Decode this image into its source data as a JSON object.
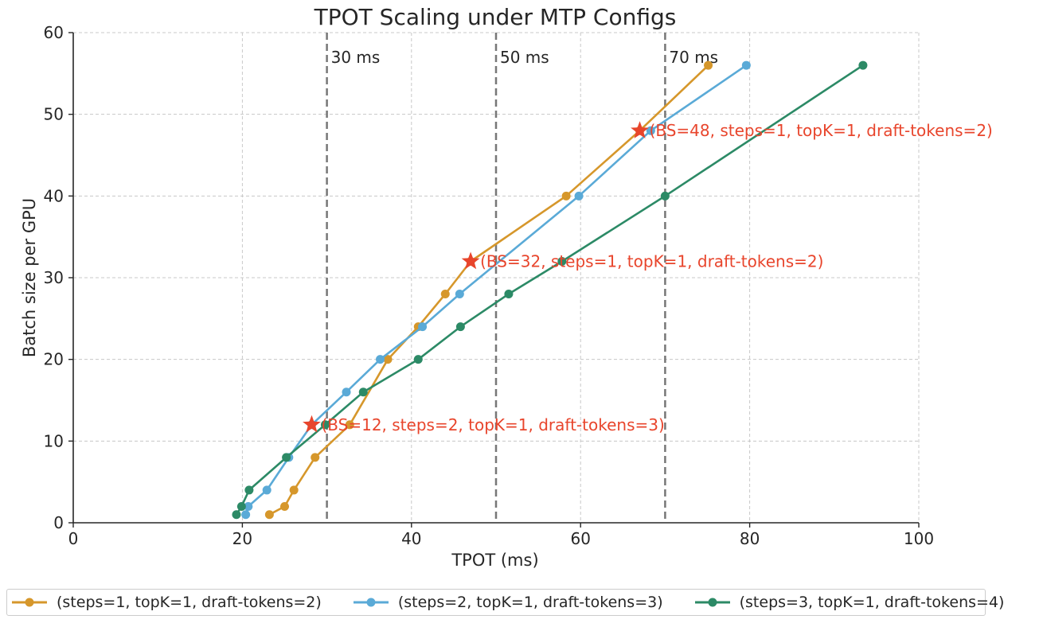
{
  "chart_data": {
    "type": "line",
    "title": "TPOT Scaling under MTP Configs",
    "xlabel": "TPOT (ms)",
    "ylabel": "Batch size per GPU",
    "xlim": [
      0,
      100
    ],
    "ylim": [
      0,
      60
    ],
    "xticks": [
      0,
      20,
      40,
      60,
      80,
      100
    ],
    "yticks": [
      0,
      10,
      20,
      30,
      40,
      50,
      60
    ],
    "grid": true,
    "legend_position": "bottom",
    "series": [
      {
        "name": "(steps=1, topK=1, draft-tokens=2)",
        "color": "#D6972B",
        "x": [
          23.2,
          25.0,
          26.1,
          28.6,
          32.7,
          37.2,
          40.8,
          44.0,
          47.0,
          58.3,
          67.0,
          75.1
        ],
        "y": [
          1,
          2,
          4,
          8,
          12,
          20,
          24,
          28,
          32,
          40,
          48,
          56
        ]
      },
      {
        "name": "(steps=2, topK=1, draft-tokens=3)",
        "color": "#5AAAD7",
        "x": [
          20.4,
          20.7,
          22.9,
          25.5,
          28.2,
          32.3,
          36.3,
          41.3,
          45.7,
          59.8,
          68.3,
          79.6
        ],
        "y": [
          1,
          2,
          4,
          8,
          12,
          16,
          20,
          24,
          28,
          40,
          48,
          56
        ]
      },
      {
        "name": "(steps=3, topK=1, draft-tokens=4)",
        "color": "#2C8A66",
        "x": [
          19.3,
          19.9,
          20.8,
          25.2,
          29.8,
          34.3,
          40.8,
          45.8,
          51.5,
          57.8,
          70.0,
          93.4
        ],
        "y": [
          1,
          2,
          4,
          8,
          12,
          16,
          20,
          24,
          28,
          32,
          40,
          56
        ]
      }
    ],
    "reference_lines": [
      {
        "x": 30,
        "label": "30 ms"
      },
      {
        "x": 50,
        "label": "50 ms"
      },
      {
        "x": 70,
        "label": "70 ms"
      }
    ],
    "annotations": [
      {
        "x": 28.2,
        "y": 12,
        "text": "(BS=12, steps=2, topK=1, draft-tokens=3)"
      },
      {
        "x": 47.0,
        "y": 32,
        "text": "(BS=32, steps=1, topK=1, draft-tokens=2)"
      },
      {
        "x": 67.0,
        "y": 48,
        "text": "(BS=48, steps=1, topK=1, draft-tokens=2)"
      }
    ],
    "annotation_color": "#E8452C",
    "refline_color": "#777777"
  }
}
